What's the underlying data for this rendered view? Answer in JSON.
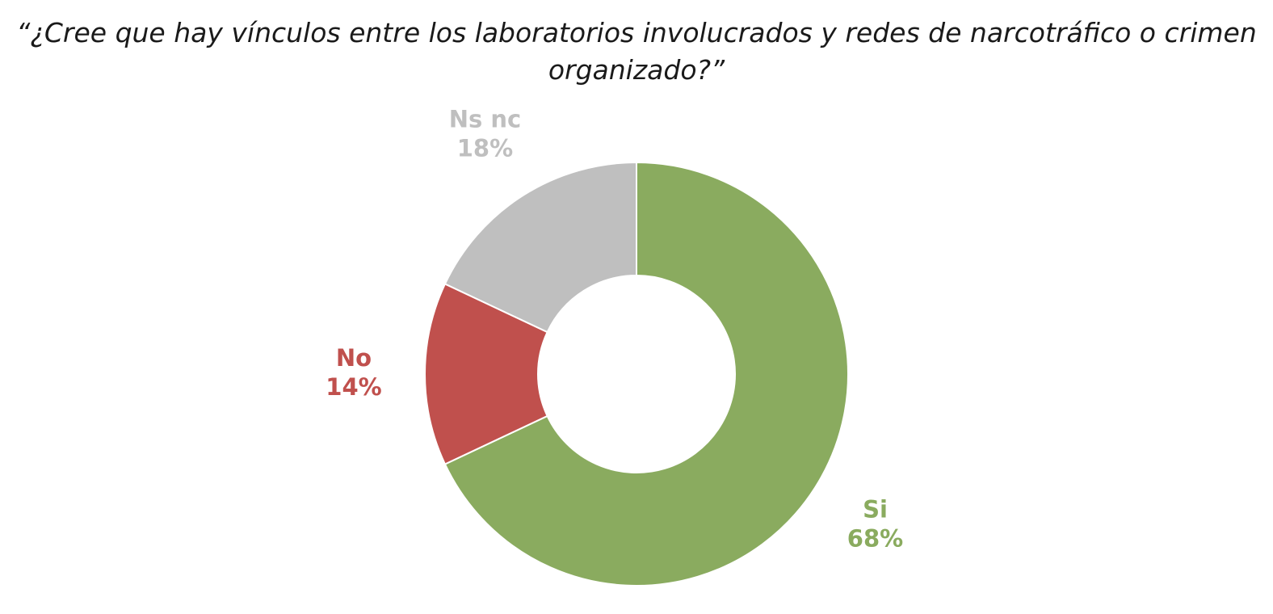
{
  "chart_data": {
    "type": "donut",
    "title": "“¿Cree que hay vínculos entre los laboratorios involucrados y redes de narcotráfico o crimen organizado?”",
    "categories": [
      "Si",
      "No",
      "Ns nc"
    ],
    "values": [
      68,
      14,
      18
    ],
    "value_labels": [
      "68%",
      "14%",
      "18%"
    ],
    "colors": [
      "#8aab5f",
      "#c0504d",
      "#bfbfbf"
    ]
  }
}
